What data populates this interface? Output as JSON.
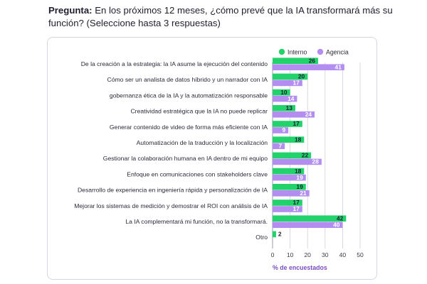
{
  "question": {
    "label": "Pregunta:",
    "text": " En los próximos 12 meses, ¿cómo prevé que la IA transformará más su función? (Seleccione hasta 3 respuestas)"
  },
  "colors": {
    "interno": "#22d36b",
    "agencia": "#b38ef0",
    "grid": "#cfcfd8"
  },
  "chart_data": {
    "type": "bar",
    "orientation": "horizontal",
    "categories": [
      "De la creación a la estrategia: la IA asume la ejecución del contenido",
      "Cómo ser un analista de datos híbrido y un narrador con IA",
      "gobernanza ética de la IA y la automatización responsable",
      "Creatividad estratégica que la IA no puede replicar",
      "Generar contenido de video de forma más eficiente con IA",
      "Automatización de la traducción y la localización",
      "Gestionar la colaboración humana en IA dentro de mi equipo",
      "Enfoque en comunicaciones con stakeholders clave",
      "Desarrollo de experiencia en ingeniería rápida y personalización de IA",
      "Mejorar los sistemas de medición y demostrar el ROI con análisis de IA",
      "La IA complementará mi función, no la transformará.",
      "Otro"
    ],
    "series": [
      {
        "name": "Interno",
        "values": [
          26,
          20,
          10,
          13,
          17,
          18,
          22,
          18,
          19,
          17,
          42,
          2
        ]
      },
      {
        "name": "Agencia",
        "values": [
          41,
          17,
          14,
          24,
          9,
          7,
          28,
          19,
          21,
          17,
          40,
          null
        ]
      }
    ],
    "xlabel": "% de encuestados",
    "xlim": [
      0,
      50
    ],
    "xticks": [
      0,
      10,
      20,
      30,
      40,
      50
    ],
    "grid": true,
    "legend": "top-right"
  }
}
